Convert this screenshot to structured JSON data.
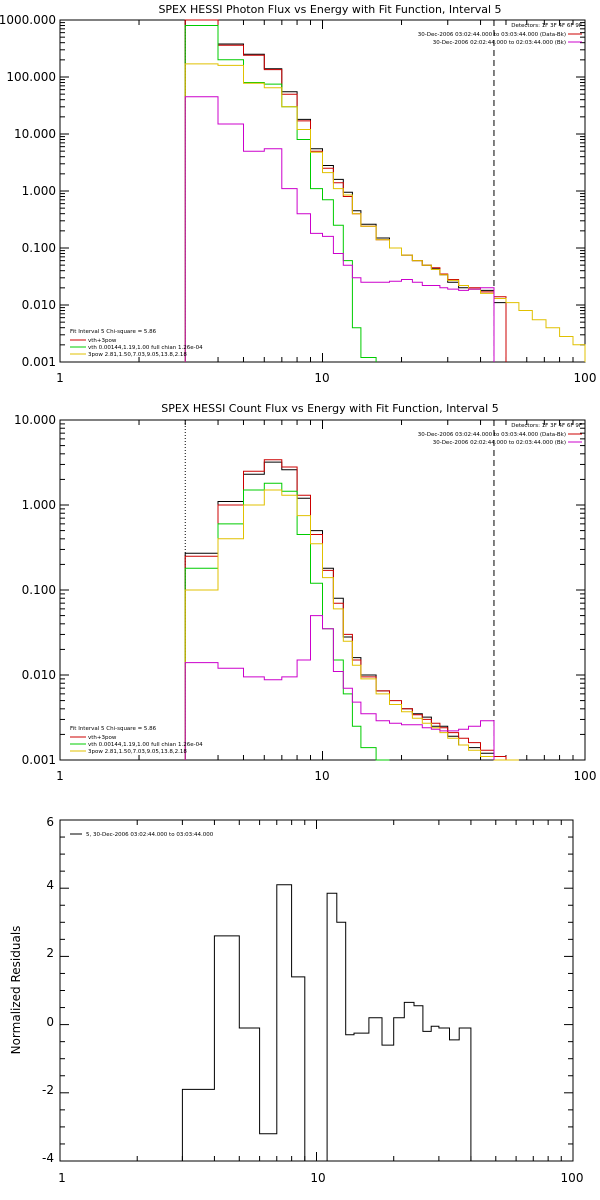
{
  "chart_data": [
    {
      "type": "line",
      "title": "SPEX HESSI Photon Flux vs Energy with Fit Function, Interval 5",
      "xscale": "log",
      "yscale": "log",
      "xlim": [
        1,
        100
      ],
      "ylim": [
        0.001,
        1000
      ],
      "x_ticks": [
        "1",
        "10",
        "100"
      ],
      "y_ticks": [
        "1000.000",
        "100.000",
        "10.000",
        "1.000",
        "0.100",
        "0.010",
        "0.001"
      ],
      "vlines": {
        "dotted": 3,
        "dashed": 45
      },
      "legend_top": {
        "detectors": "Detectors: 1F 3F 4F 6F 9F",
        "data_label": "30-Dec-2006 03:02:44.000 to 03:03:44.000 (Data-Bk)",
        "bk_label": "30-Dec-2006 02:02:44.000 to 02:03:44.000 (Bk)"
      },
      "legend_bottom": {
        "header": "Fit Interval 5   Chi-square = 5.86",
        "lines": [
          "vth+3pow",
          "vth 0.00144,1.19,1.00  full chian 1.26e-04",
          "3pow 2.81,1.50,7.03,9.05,13.8,2.18"
        ]
      },
      "edges": [
        3,
        4,
        5,
        6,
        7,
        8,
        9,
        10,
        11,
        12,
        13,
        14,
        16,
        18,
        20,
        22,
        24,
        26,
        28,
        30,
        33,
        36,
        40,
        45,
        50,
        56,
        63,
        71,
        80,
        90,
        100
      ],
      "series": [
        {
          "key": "data",
          "color": "#000000",
          "values": [
            1000,
            380,
            250,
            140,
            55,
            18,
            5.5,
            2.8,
            1.6,
            0.95,
            0.45,
            0.26,
            0.15,
            0.1,
            0.075,
            0.06,
            0.05,
            0.043,
            0.034,
            0.025,
            0.02,
            0.019,
            0.018,
            0.011
          ]
        },
        {
          "key": "total",
          "color": "#cc0000",
          "values": [
            1000,
            360,
            240,
            135,
            50,
            17,
            5,
            2.5,
            1.4,
            0.8,
            0.4,
            0.24,
            0.14,
            0.1,
            0.075,
            0.06,
            0.05,
            0.045,
            0.035,
            0.028,
            0.022,
            0.02,
            0.017,
            0.014
          ]
        },
        {
          "key": "thermal",
          "color": "#00cc00",
          "values": [
            800,
            200,
            80,
            75,
            30,
            8,
            1.1,
            0.7,
            0.25,
            0.06,
            0.004,
            0.0012
          ]
        },
        {
          "key": "power",
          "color": "#e0c000",
          "values": [
            170,
            160,
            78,
            65,
            30,
            12,
            4.8,
            2.1,
            1.1,
            0.85,
            0.4,
            0.24,
            0.14,
            0.1,
            0.075,
            0.06,
            0.05,
            0.042,
            0.034,
            0.027,
            0.022,
            0.019,
            0.016,
            0.013,
            0.011,
            0.008,
            0.0055,
            0.004,
            0.0028,
            0.002
          ]
        },
        {
          "key": "background",
          "color": "#cc00cc",
          "values": [
            45,
            15,
            5,
            5.5,
            1.1,
            0.4,
            0.18,
            0.16,
            0.08,
            0.05,
            0.03,
            0.025,
            0.025,
            0.026,
            0.028,
            0.025,
            0.022,
            0.022,
            0.02,
            0.019,
            0.018,
            0.019,
            0.02
          ]
        }
      ]
    },
    {
      "type": "line",
      "title": "SPEX HESSI Count Flux vs Energy with Fit Function, Interval 5",
      "xscale": "log",
      "yscale": "log",
      "xlim": [
        1,
        100
      ],
      "ylim": [
        0.001,
        10
      ],
      "x_ticks": [
        "1",
        "10",
        "100"
      ],
      "y_ticks": [
        "10.000",
        "1.000",
        "0.100",
        "0.010",
        "0.001"
      ],
      "vlines": {
        "dotted": 3,
        "dashed": 45
      },
      "legend_top": {
        "detectors": "Detectors: 1F 3F 4F 6F 9F",
        "data_label": "30-Dec-2006 03:02:44.000 to 03:03:44.000 (Data-Bk)",
        "bk_label": "30-Dec-2006 02:02:44.000 to 02:03:44.000 (Bk)"
      },
      "legend_bottom": {
        "header": "Fit Interval 5   Chi-square = 5.86",
        "lines": [
          "vth+3pow",
          "vth 0.00144,1.19,1.00  full chian 1.26e-04",
          "3pow 2.81,1.50,7.03,9.05,13.8,2.18"
        ]
      },
      "edges": [
        3,
        4,
        5,
        6,
        7,
        8,
        9,
        10,
        11,
        12,
        13,
        14,
        16,
        18,
        20,
        22,
        24,
        26,
        28,
        30,
        33,
        36,
        40,
        45,
        50,
        56
      ],
      "series": [
        {
          "key": "data",
          "color": "#000000",
          "values": [
            0.27,
            1.1,
            2.3,
            3.2,
            2.6,
            1.2,
            0.5,
            0.18,
            0.08,
            0.028,
            0.016,
            0.01,
            0.0065,
            0.0045,
            0.004,
            0.0035,
            0.0032,
            0.0025,
            0.0025,
            0.0019,
            0.0015,
            0.0014,
            0.0012,
            0.0011
          ]
        },
        {
          "key": "total",
          "color": "#cc0000",
          "values": [
            0.25,
            1.0,
            2.5,
            3.4,
            2.8,
            1.3,
            0.45,
            0.17,
            0.07,
            0.03,
            0.015,
            0.0095,
            0.0065,
            0.005,
            0.004,
            0.0034,
            0.003,
            0.0027,
            0.0024,
            0.0021,
            0.0018,
            0.0016,
            0.0013,
            0.0011,
            0.0009
          ]
        },
        {
          "key": "thermal",
          "color": "#00cc00",
          "values": [
            0.18,
            0.6,
            1.5,
            1.8,
            1.45,
            0.45,
            0.12,
            0.035,
            0.015,
            0.006,
            0.0025,
            0.0014,
            0.0008
          ]
        },
        {
          "key": "power",
          "color": "#e0c000",
          "values": [
            0.1,
            0.4,
            1.0,
            1.5,
            1.3,
            0.75,
            0.35,
            0.14,
            0.06,
            0.025,
            0.013,
            0.009,
            0.006,
            0.0045,
            0.0037,
            0.0031,
            0.0027,
            0.0024,
            0.0021,
            0.0018,
            0.0015,
            0.0013,
            0.0011,
            0.00095,
            0.0008
          ]
        },
        {
          "key": "background",
          "color": "#cc00cc",
          "values": [
            0.014,
            0.012,
            0.0095,
            0.0088,
            0.0095,
            0.015,
            0.05,
            0.035,
            0.011,
            0.007,
            0.0048,
            0.0035,
            0.0029,
            0.0027,
            0.0026,
            0.0026,
            0.0024,
            0.0023,
            0.0022,
            0.0022,
            0.0023,
            0.0025,
            0.0029
          ]
        }
      ]
    },
    {
      "type": "line",
      "title": "",
      "ylabel": "Normalized Residuals",
      "xscale": "log",
      "yscale": "linear",
      "xlim": [
        1,
        100
      ],
      "ylim": [
        -4,
        6
      ],
      "x_ticks": [
        "1",
        "10",
        "100"
      ],
      "y_ticks": [
        "-4",
        "-2",
        "0",
        "2",
        "4",
        "6"
      ],
      "legend_label": "5, 30-Dec-2006 03:02:44.000 to 03:03:44.000",
      "edges": [
        3,
        4,
        5,
        6,
        7,
        8,
        9,
        10,
        11,
        12,
        13,
        14,
        16,
        18,
        20,
        22,
        24,
        26,
        28,
        30,
        33,
        36,
        40,
        45
      ],
      "series": [
        {
          "key": "residuals",
          "color": "#000000",
          "values": [
            -1.9,
            2.6,
            -0.1,
            -3.2,
            4.1,
            1.4,
            -4.1,
            -4.0,
            3.85,
            3.0,
            -0.3,
            -0.25,
            0.2,
            -0.6,
            0.2,
            0.65,
            0.55,
            -0.2,
            -0.05,
            -0.1,
            -0.45,
            -0.1,
            -4.1
          ]
        }
      ]
    }
  ]
}
